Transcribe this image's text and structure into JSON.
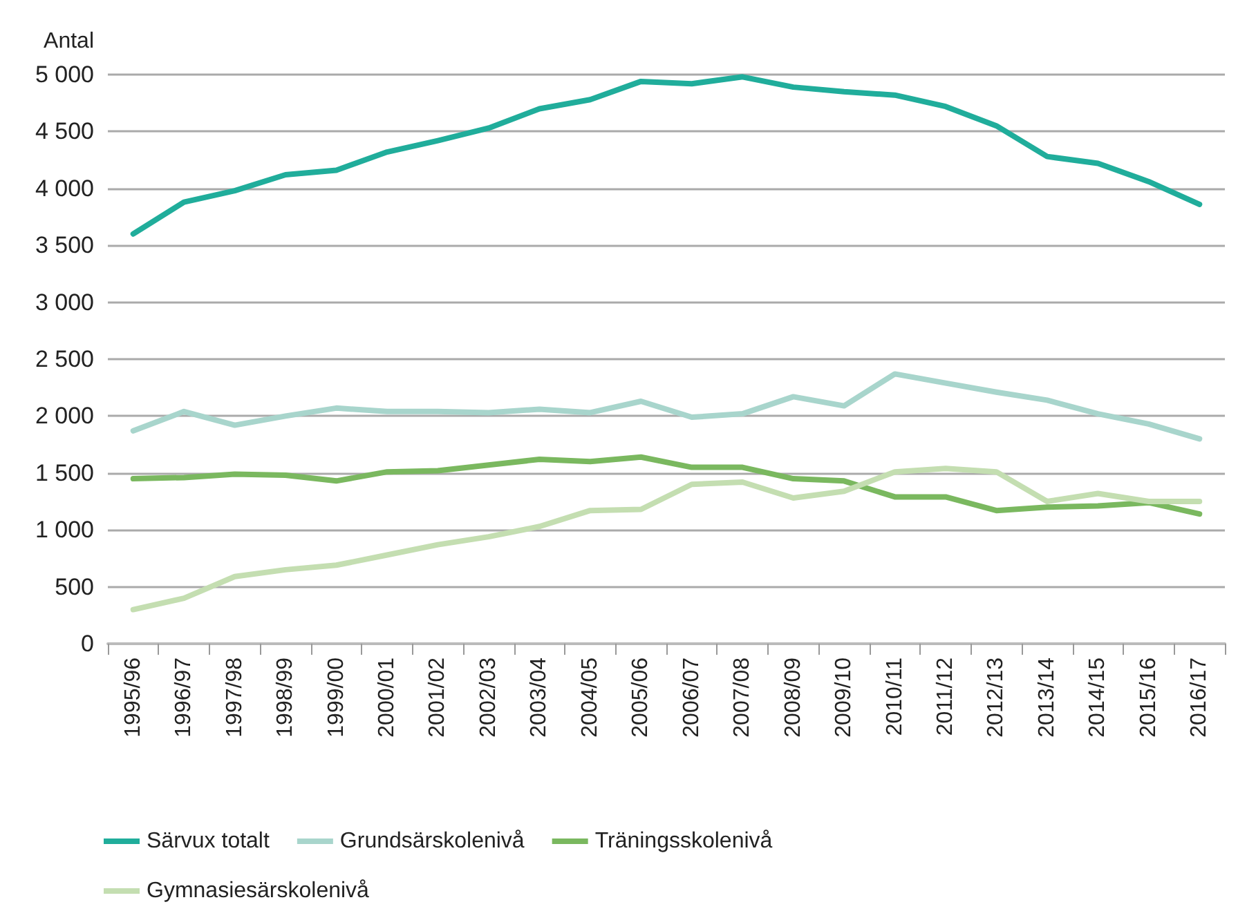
{
  "chart_data": {
    "type": "line",
    "ylabel": "Antal",
    "categories": [
      "1995/96",
      "1996/97",
      "1997/98",
      "1998/99",
      "1999/00",
      "2000/01",
      "2001/02",
      "2002/03",
      "2003/04",
      "2004/05",
      "2005/06",
      "2006/07",
      "2007/08",
      "2008/09",
      "2009/10",
      "2010/11",
      "2011/12",
      "2012/13",
      "2013/14",
      "2014/15",
      "2015/16",
      "2016/17"
    ],
    "series": [
      {
        "name": "Särvux totalt",
        "color": "#20ad9b",
        "values": [
          3600,
          3880,
          3980,
          4120,
          4160,
          4320,
          4420,
          4530,
          4700,
          4780,
          4940,
          4920,
          4980,
          4890,
          4850,
          4820,
          4720,
          4550,
          4280,
          4220,
          4060,
          3860
        ]
      },
      {
        "name": "Grundsärskolenivå",
        "color": "#a8d5cc",
        "values": [
          1870,
          2040,
          1920,
          2000,
          2070,
          2040,
          2040,
          2030,
          2060,
          2030,
          2130,
          1990,
          2020,
          2170,
          2090,
          2370,
          2290,
          2210,
          2140,
          2020,
          1930,
          1800
        ]
      },
      {
        "name": "Träningsskolenivå",
        "color": "#7ab85f",
        "values": [
          1450,
          1460,
          1490,
          1480,
          1430,
          1510,
          1520,
          1570,
          1620,
          1600,
          1640,
          1550,
          1550,
          1450,
          1430,
          1290,
          1290,
          1170,
          1200,
          1210,
          1240,
          1140
        ]
      },
      {
        "name": "Gymnasiesärskolenivå",
        "color": "#c4deb1",
        "values": [
          300,
          400,
          590,
          650,
          690,
          780,
          870,
          940,
          1030,
          1170,
          1180,
          1400,
          1420,
          1280,
          1340,
          1510,
          1540,
          1510,
          1250,
          1320,
          1250,
          1250
        ]
      }
    ],
    "ylim": [
      0,
      5000
    ],
    "yticks": [
      0,
      500,
      {
        "value": 1000,
        "label": "1 000"
      },
      {
        "value": 1500,
        "label": "1 500"
      },
      {
        "value": 2000,
        "label": "2 000"
      },
      {
        "value": 2500,
        "label": "2 500"
      },
      {
        "value": 3000,
        "label": "3 000"
      },
      {
        "value": 3500,
        "label": "3 500"
      },
      {
        "value": 4000,
        "label": "4 000"
      },
      {
        "value": 4500,
        "label": "4 500"
      },
      {
        "value": 5000,
        "label": "5 000"
      }
    ],
    "grid": "y",
    "legend": "bottom",
    "marker": "none",
    "line_style": "solid"
  }
}
